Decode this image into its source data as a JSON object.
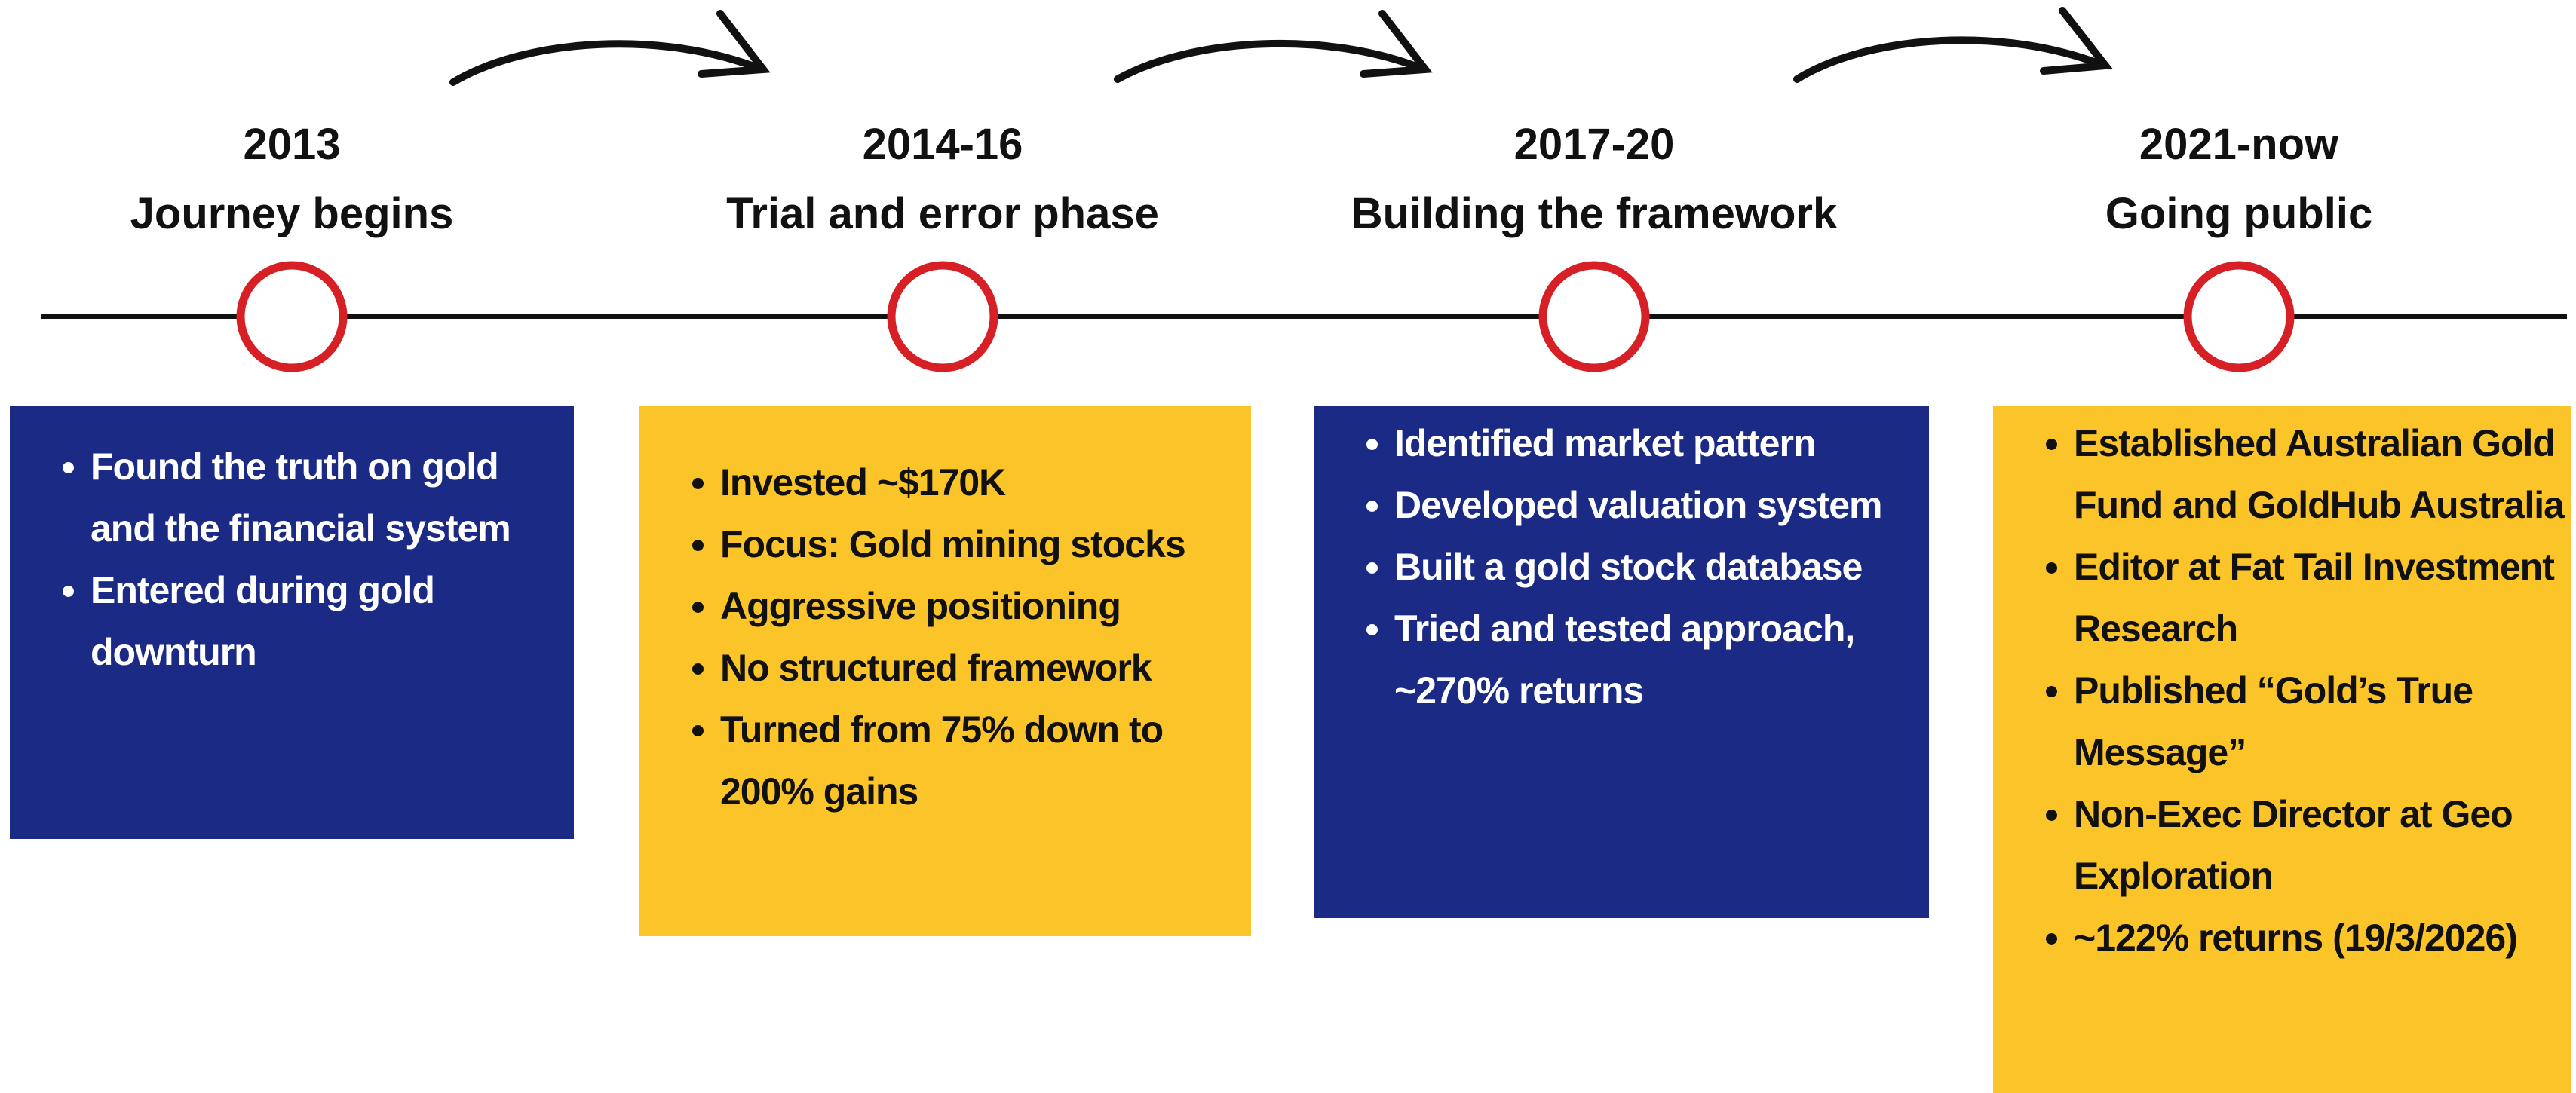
{
  "phases": [
    {
      "year": "2013",
      "title": "Journey begins",
      "color": "#1b2a84",
      "text_color": "#ffffff",
      "bullets": [
        "Found the truth on gold and the financial system",
        "Entered during gold downturn"
      ]
    },
    {
      "year": "2014-16",
      "title": "Trial and error phase",
      "color": "#fbc52a",
      "text_color": "#111111",
      "bullets": [
        "Invested ~$170K",
        "Focus: Gold mining stocks",
        "Aggressive positioning",
        "No structured framework",
        "Turned from 75% down to 200% gains"
      ]
    },
    {
      "year": "2017-20",
      "title": "Building the framework",
      "color": "#1b2a84",
      "text_color": "#ffffff",
      "bullets": [
        "Identified market pattern",
        "Developed valuation system",
        "Built a gold stock database",
        "Tried and tested approach, ~270% returns"
      ]
    },
    {
      "year": "2021-now",
      "title": "Going public",
      "color": "#fbc52a",
      "text_color": "#111111",
      "bullets": [
        "Established Australian Gold Fund and GoldHub Australia",
        "Editor at Fat Tail Investment Research",
        "Published “Gold’s True Message”",
        "Non-Exec Director at Geo Exploration",
        "~122% returns (19/3/2026)"
      ]
    }
  ]
}
